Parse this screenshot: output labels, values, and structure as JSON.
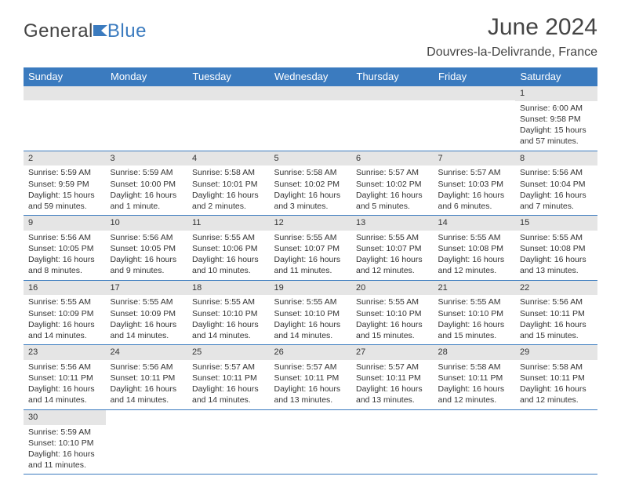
{
  "logo": {
    "text1": "General",
    "text2": "Blue"
  },
  "title": "June 2024",
  "location": "Douvres-la-Delivrande, France",
  "weekdays": [
    "Sunday",
    "Monday",
    "Tuesday",
    "Wednesday",
    "Thursday",
    "Friday",
    "Saturday"
  ],
  "colors": {
    "header_bg": "#3b7bbf",
    "header_text": "#ffffff",
    "daynum_bg": "#e5e5e5",
    "border": "#3b7bbf",
    "text": "#333333",
    "logo_blue": "#3b7bbf"
  },
  "grid": [
    [
      null,
      null,
      null,
      null,
      null,
      null,
      {
        "n": "1",
        "sr": "6:00 AM",
        "ss": "9:58 PM",
        "dl": "15 hours and 57 minutes."
      }
    ],
    [
      {
        "n": "2",
        "sr": "5:59 AM",
        "ss": "9:59 PM",
        "dl": "15 hours and 59 minutes."
      },
      {
        "n": "3",
        "sr": "5:59 AM",
        "ss": "10:00 PM",
        "dl": "16 hours and 1 minute."
      },
      {
        "n": "4",
        "sr": "5:58 AM",
        "ss": "10:01 PM",
        "dl": "16 hours and 2 minutes."
      },
      {
        "n": "5",
        "sr": "5:58 AM",
        "ss": "10:02 PM",
        "dl": "16 hours and 3 minutes."
      },
      {
        "n": "6",
        "sr": "5:57 AM",
        "ss": "10:02 PM",
        "dl": "16 hours and 5 minutes."
      },
      {
        "n": "7",
        "sr": "5:57 AM",
        "ss": "10:03 PM",
        "dl": "16 hours and 6 minutes."
      },
      {
        "n": "8",
        "sr": "5:56 AM",
        "ss": "10:04 PM",
        "dl": "16 hours and 7 minutes."
      }
    ],
    [
      {
        "n": "9",
        "sr": "5:56 AM",
        "ss": "10:05 PM",
        "dl": "16 hours and 8 minutes."
      },
      {
        "n": "10",
        "sr": "5:56 AM",
        "ss": "10:05 PM",
        "dl": "16 hours and 9 minutes."
      },
      {
        "n": "11",
        "sr": "5:55 AM",
        "ss": "10:06 PM",
        "dl": "16 hours and 10 minutes."
      },
      {
        "n": "12",
        "sr": "5:55 AM",
        "ss": "10:07 PM",
        "dl": "16 hours and 11 minutes."
      },
      {
        "n": "13",
        "sr": "5:55 AM",
        "ss": "10:07 PM",
        "dl": "16 hours and 12 minutes."
      },
      {
        "n": "14",
        "sr": "5:55 AM",
        "ss": "10:08 PM",
        "dl": "16 hours and 12 minutes."
      },
      {
        "n": "15",
        "sr": "5:55 AM",
        "ss": "10:08 PM",
        "dl": "16 hours and 13 minutes."
      }
    ],
    [
      {
        "n": "16",
        "sr": "5:55 AM",
        "ss": "10:09 PM",
        "dl": "16 hours and 14 minutes."
      },
      {
        "n": "17",
        "sr": "5:55 AM",
        "ss": "10:09 PM",
        "dl": "16 hours and 14 minutes."
      },
      {
        "n": "18",
        "sr": "5:55 AM",
        "ss": "10:10 PM",
        "dl": "16 hours and 14 minutes."
      },
      {
        "n": "19",
        "sr": "5:55 AM",
        "ss": "10:10 PM",
        "dl": "16 hours and 14 minutes."
      },
      {
        "n": "20",
        "sr": "5:55 AM",
        "ss": "10:10 PM",
        "dl": "16 hours and 15 minutes."
      },
      {
        "n": "21",
        "sr": "5:55 AM",
        "ss": "10:10 PM",
        "dl": "16 hours and 15 minutes."
      },
      {
        "n": "22",
        "sr": "5:56 AM",
        "ss": "10:11 PM",
        "dl": "16 hours and 15 minutes."
      }
    ],
    [
      {
        "n": "23",
        "sr": "5:56 AM",
        "ss": "10:11 PM",
        "dl": "16 hours and 14 minutes."
      },
      {
        "n": "24",
        "sr": "5:56 AM",
        "ss": "10:11 PM",
        "dl": "16 hours and 14 minutes."
      },
      {
        "n": "25",
        "sr": "5:57 AM",
        "ss": "10:11 PM",
        "dl": "16 hours and 14 minutes."
      },
      {
        "n": "26",
        "sr": "5:57 AM",
        "ss": "10:11 PM",
        "dl": "16 hours and 13 minutes."
      },
      {
        "n": "27",
        "sr": "5:57 AM",
        "ss": "10:11 PM",
        "dl": "16 hours and 13 minutes."
      },
      {
        "n": "28",
        "sr": "5:58 AM",
        "ss": "10:11 PM",
        "dl": "16 hours and 12 minutes."
      },
      {
        "n": "29",
        "sr": "5:58 AM",
        "ss": "10:11 PM",
        "dl": "16 hours and 12 minutes."
      }
    ],
    [
      {
        "n": "30",
        "sr": "5:59 AM",
        "ss": "10:10 PM",
        "dl": "16 hours and 11 minutes."
      },
      null,
      null,
      null,
      null,
      null,
      null
    ]
  ],
  "labels": {
    "sunrise": "Sunrise:",
    "sunset": "Sunset:",
    "daylight": "Daylight:"
  }
}
